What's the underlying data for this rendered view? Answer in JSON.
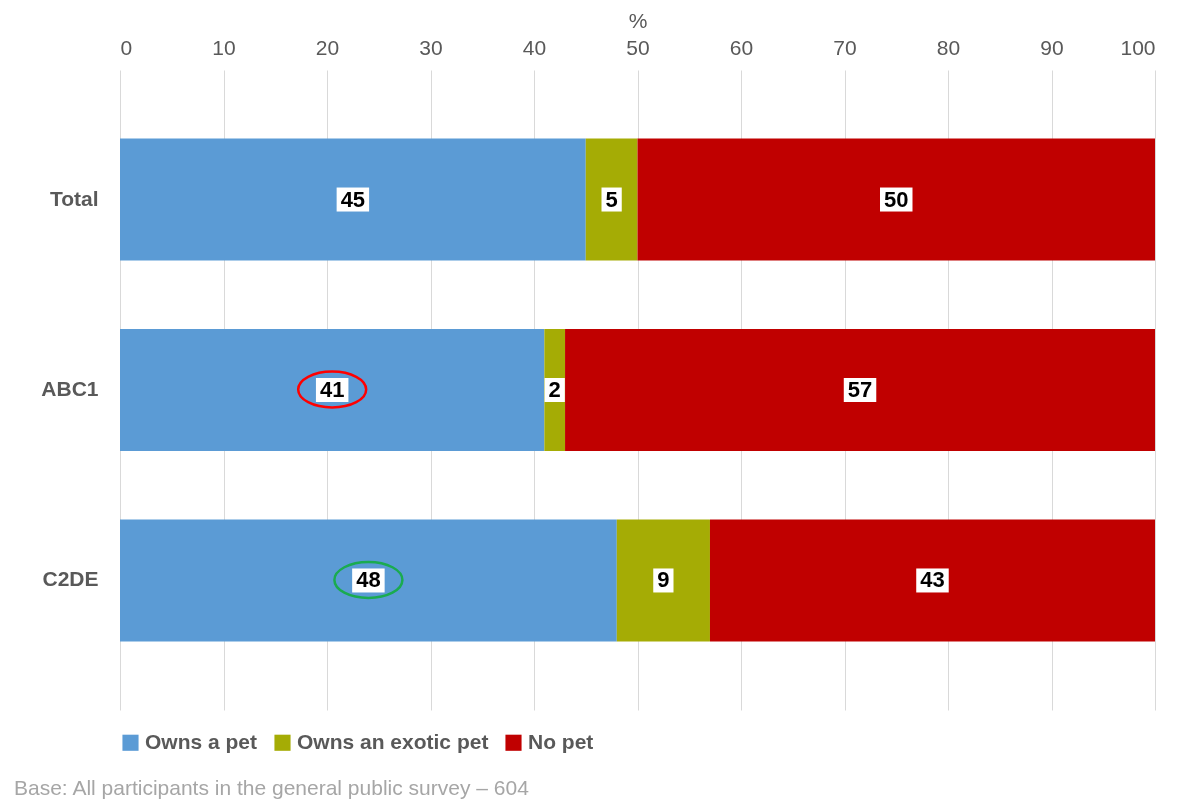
{
  "chart_data": {
    "type": "bar",
    "orientation": "horizontal",
    "stacked": true,
    "xlabel": "%",
    "categories": [
      "Total",
      "ABC1",
      "C2DE"
    ],
    "series": [
      {
        "name": "Owns a pet",
        "color": "#5b9bd5",
        "values": [
          45,
          41,
          48
        ]
      },
      {
        "name": "Owns an exotic pet",
        "color": "#a5ac05",
        "values": [
          5,
          2,
          9
        ]
      },
      {
        "name": "No pet",
        "color": "#c00000",
        "values": [
          50,
          57,
          43
        ]
      }
    ],
    "xlim": [
      0,
      100
    ],
    "xticks": [
      0,
      10,
      20,
      30,
      40,
      50,
      60,
      70,
      80,
      90,
      100
    ],
    "grid": "x",
    "legend": "bottom",
    "data_labels": true,
    "annotations": [
      "Base: All participants in the general public survey – 604"
    ]
  }
}
